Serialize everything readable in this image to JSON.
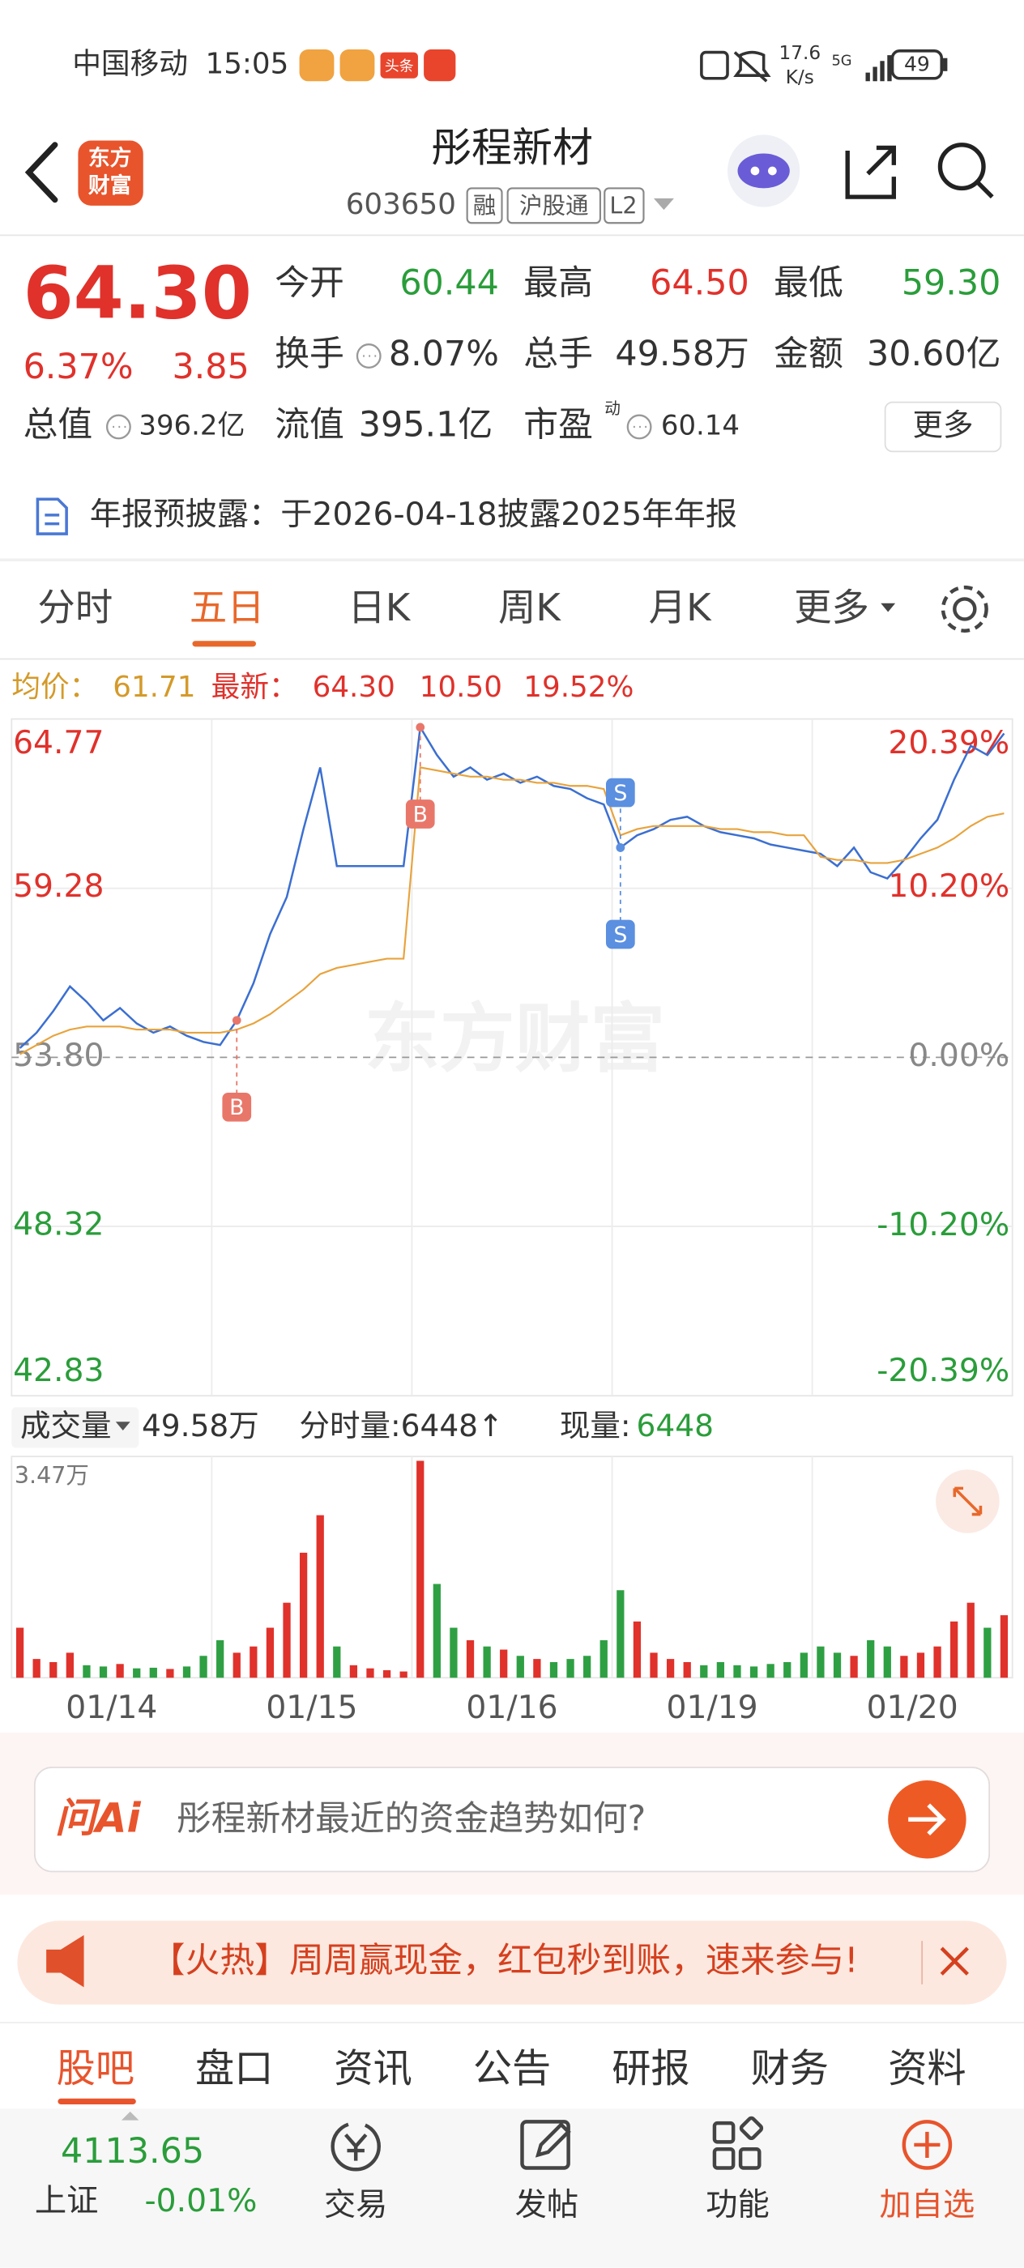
{
  "status_bar": {
    "carrier": "中国移动",
    "time": "15:05",
    "badge": "头条",
    "speed_value": "17.6",
    "speed_unit": "K/s",
    "network": "5G",
    "battery": "49"
  },
  "header": {
    "logo": [
      "东方",
      "财富"
    ],
    "title": "彤程新材",
    "code": "603650",
    "tags": [
      "融",
      "沪股通",
      "L2"
    ]
  },
  "quote": {
    "price": "64.30",
    "change_pct": "6.37%",
    "change": "3.85",
    "fields": [
      {
        "label": "今开",
        "value": "60.44"
      },
      {
        "label": "最高",
        "value": "64.50"
      },
      {
        "label": "最低",
        "value": "59.30"
      },
      {
        "label": "换手",
        "value": "8.07%"
      },
      {
        "label": "总手",
        "value": "49.58万"
      },
      {
        "label": "金额",
        "value": "30.60亿"
      },
      {
        "label": "总值",
        "value": "396.2亿"
      },
      {
        "label": "流值",
        "value": "395.1亿"
      },
      {
        "label": "市盈",
        "sup": "动",
        "value": "60.14"
      }
    ],
    "more": "更多"
  },
  "notice": "年报预披露：于2026-04-18披露2025年年报",
  "tabs": [
    "分时",
    "五日",
    "日K",
    "周K",
    "月K",
    "更多"
  ],
  "chart_info": {
    "avg_label": "均价：",
    "avg": "61.71",
    "latest_label": "最新：",
    "latest": "64.30",
    "change": "10.50",
    "change_pct": "19.52%"
  },
  "watermark": "东方财富",
  "chart_data": {
    "type": "line",
    "series": [
      {
        "name": "价格",
        "color": "#3b6fd1",
        "values": [
          54.1,
          54.6,
          55.3,
          56.1,
          55.6,
          55.0,
          55.4,
          54.9,
          54.6,
          54.8,
          54.5,
          54.3,
          54.2,
          55.0,
          56.2,
          57.8,
          59.0,
          61.2,
          63.2,
          60.0,
          60.0,
          60.0,
          60.0,
          60.0,
          64.5,
          63.6,
          62.9,
          63.2,
          62.8,
          63.0,
          62.7,
          62.9,
          62.6,
          62.5,
          62.2,
          62.0,
          60.6,
          61.0,
          61.2,
          61.5,
          61.6,
          61.3,
          61.1,
          61.0,
          60.9,
          60.7,
          60.6,
          60.5,
          60.4,
          60.0,
          60.6,
          59.8,
          59.6,
          60.2,
          60.9,
          61.5,
          62.8,
          63.9,
          63.6,
          64.3
        ]
      },
      {
        "name": "均价",
        "color": "#e8a33c",
        "values": [
          53.9,
          54.2,
          54.5,
          54.7,
          54.8,
          54.8,
          54.8,
          54.7,
          54.7,
          54.7,
          54.6,
          54.6,
          54.6,
          54.7,
          54.9,
          55.2,
          55.6,
          56.0,
          56.5,
          56.7,
          56.8,
          56.9,
          57.0,
          57.0,
          63.2,
          63.1,
          63.0,
          62.9,
          62.9,
          62.8,
          62.8,
          62.7,
          62.7,
          62.6,
          62.6,
          62.5,
          61.0,
          61.2,
          61.3,
          61.3,
          61.3,
          61.3,
          61.2,
          61.2,
          61.1,
          61.1,
          61.0,
          61.0,
          60.3,
          60.2,
          60.2,
          60.1,
          60.1,
          60.2,
          60.4,
          60.6,
          60.9,
          61.3,
          61.6,
          61.71
        ]
      }
    ],
    "ylim": [
      42.83,
      64.77
    ],
    "yticks": [
      64.77,
      59.28,
      {
        "value": 53.8,
        "label": "53.80"
      },
      48.32,
      42.83
    ],
    "y2lim": [
      -20.39,
      20.39
    ],
    "y2ticks": [
      {
        "value": 20.39,
        "label": "20.39%"
      },
      {
        "value": 10.2,
        "label": "10.20%"
      },
      {
        "value": 0,
        "label": "0.00%"
      },
      {
        "value": -10.2,
        "label": "-10.20%"
      },
      {
        "value": -20.39,
        "label": "-20.39%"
      }
    ],
    "annotations": [
      "B",
      "B",
      "S",
      "S"
    ],
    "grid": true
  },
  "volume": {
    "label": "成交量",
    "total": "49.58万",
    "tick_volume": "分时量:6448↑",
    "current_label": "现量:",
    "current": "6448",
    "up_color": "#e0312b",
    "down_color": "#2ea043",
    "ylim": [
      0,
      34700
    ],
    "yticks": [
      {
        "value": 34700,
        "label": "3.47万"
      }
    ],
    "values": [
      8000,
      3000,
      2500,
      4000,
      2000,
      1800,
      2200,
      1500,
      1600,
      1400,
      1800,
      3500,
      6000,
      4000,
      5000,
      8000,
      12000,
      20000,
      26000,
      5000,
      2000,
      1500,
      1200,
      1000,
      34700,
      15000,
      8000,
      6000,
      5000,
      4500,
      3500,
      3000,
      2500,
      3000,
      3500,
      6000,
      14000,
      9000,
      4000,
      3000,
      2500,
      2000,
      2500,
      2000,
      1800,
      2200,
      2500,
      4000,
      5000,
      4000,
      3500,
      6000,
      5000,
      3500,
      4000,
      5000,
      9000,
      12000,
      8000,
      10000
    ],
    "x_labels": [
      "01/14",
      "01/15",
      "01/16",
      "01/19",
      "01/20"
    ]
  },
  "ai_box": {
    "brand": "问Ai",
    "prompt": "彤程新材最近的资金趋势如何?"
  },
  "banner": "【火热】周周赢现金，红包秒到账，速来参与!",
  "section_tabs": [
    "股吧",
    "盘口",
    "资讯",
    "公告",
    "研报",
    "财务",
    "资料"
  ],
  "bottom_nav": {
    "index_value": "4113.65",
    "index_name": "上证",
    "index_change": "-0.01%",
    "items": [
      "交易",
      "发帖",
      "功能",
      "加自选"
    ]
  }
}
